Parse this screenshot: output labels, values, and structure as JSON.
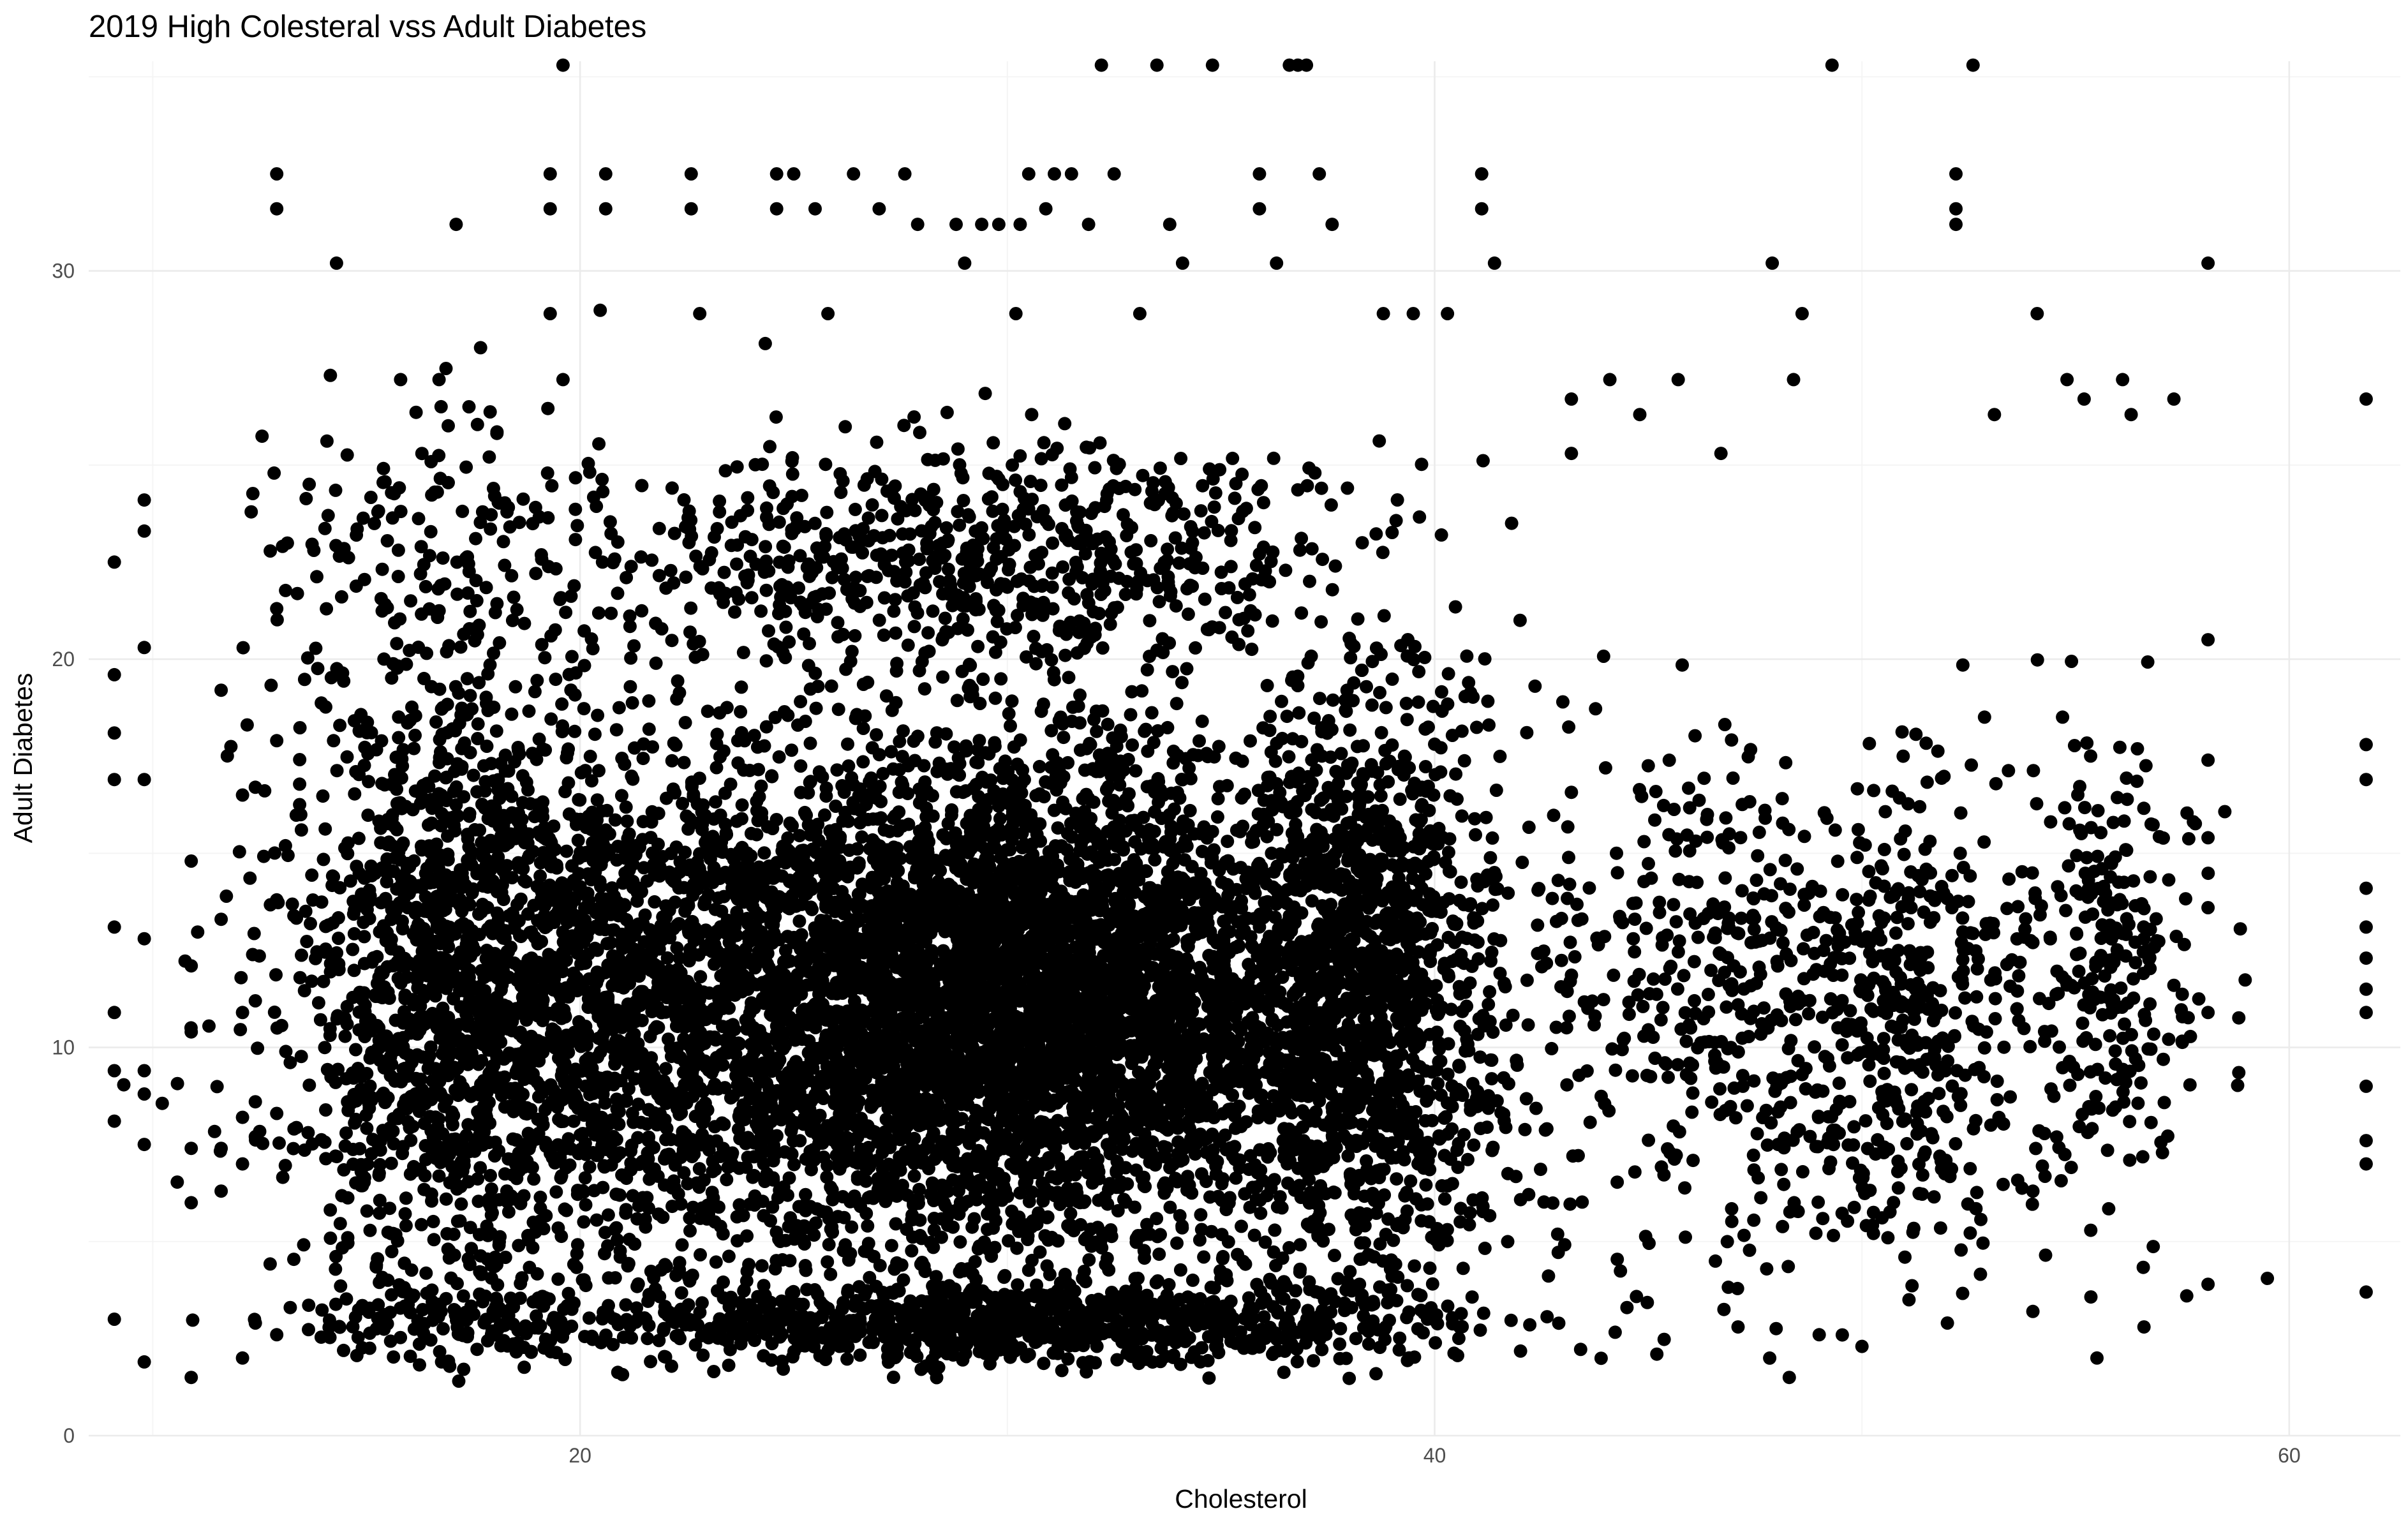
{
  "chart_data": {
    "type": "scatter",
    "title": "2019 High Colesteral vss Adult Diabetes",
    "xlabel": "Cholesterol",
    "ylabel": "Adult Diabetes",
    "xlim": [
      8.5,
      62.6
    ],
    "ylim": [
      0,
      35.4
    ],
    "x_ticks": [
      20,
      40,
      60
    ],
    "x_tick_labels": [
      "20",
      "40",
      "60"
    ],
    "y_ticks": [
      0,
      10,
      20,
      30
    ],
    "y_tick_labels": [
      "0",
      "10",
      "20",
      "30"
    ],
    "grid": true,
    "legend": "none",
    "point_color": "#000000",
    "series": [
      {
        "values": [
          [
            9.1,
            3.0
          ],
          [
            9.1,
            8.1
          ],
          [
            9.1,
            9.4
          ],
          [
            9.1,
            10.9
          ],
          [
            9.1,
            13.1
          ],
          [
            9.1,
            16.9
          ],
          [
            9.1,
            18.1
          ],
          [
            9.1,
            19.6
          ],
          [
            9.1,
            22.5
          ],
          [
            9.8,
            1.9
          ],
          [
            9.8,
            7.5
          ],
          [
            9.8,
            8.8
          ],
          [
            9.8,
            9.4
          ],
          [
            9.8,
            12.8
          ],
          [
            9.8,
            16.9
          ],
          [
            9.8,
            20.3
          ],
          [
            9.8,
            23.3
          ],
          [
            9.8,
            24.1
          ],
          [
            10.9,
            1.5
          ],
          [
            10.9,
            6.0
          ],
          [
            10.9,
            7.4
          ],
          [
            10.9,
            10.4
          ],
          [
            10.9,
            12.1
          ],
          [
            10.9,
            14.8
          ],
          [
            11.6,
            6.3
          ],
          [
            11.6,
            7.4
          ],
          [
            11.6,
            13.3
          ],
          [
            11.6,
            19.2
          ],
          [
            12.1,
            2.0
          ],
          [
            12.1,
            7.0
          ],
          [
            12.1,
            8.2
          ],
          [
            12.1,
            10.9
          ],
          [
            12.1,
            16.5
          ],
          [
            12.4,
            2.9
          ],
          [
            12.4,
            7.7
          ],
          [
            12.4,
            8.6
          ],
          [
            12.4,
            11.2
          ],
          [
            12.4,
            16.7
          ],
          [
            12.9,
            2.6
          ],
          [
            12.9,
            8.3
          ],
          [
            12.9,
            13.8
          ],
          [
            12.9,
            17.9
          ],
          [
            12.9,
            21.3
          ],
          [
            12.9,
            31.6
          ],
          [
            12.9,
            32.5
          ],
          [
            14.3,
            30.2
          ],
          [
            15.8,
            27.2
          ],
          [
            16.7,
            27.2
          ],
          [
            17.1,
            31.2
          ],
          [
            17.4,
            26.5
          ],
          [
            19.3,
            28.9
          ],
          [
            19.3,
            31.6
          ],
          [
            19.3,
            32.5
          ],
          [
            19.6,
            35.3
          ],
          [
            19.6,
            27.2
          ],
          [
            20.6,
            31.6
          ],
          [
            20.6,
            32.5
          ],
          [
            22.6,
            31.6
          ],
          [
            22.6,
            32.5
          ],
          [
            22.8,
            28.9
          ],
          [
            24.6,
            31.6
          ],
          [
            24.6,
            32.5
          ],
          [
            25.0,
            32.5
          ],
          [
            25.5,
            31.6
          ],
          [
            25.8,
            28.9
          ],
          [
            26.4,
            32.5
          ],
          [
            27.0,
            31.6
          ],
          [
            27.6,
            32.5
          ],
          [
            27.9,
            31.2
          ],
          [
            28.8,
            31.2
          ],
          [
            29.0,
            30.2
          ],
          [
            29.4,
            31.2
          ],
          [
            29.8,
            31.2
          ],
          [
            30.3,
            31.2
          ],
          [
            30.2,
            28.9
          ],
          [
            30.5,
            32.5
          ],
          [
            30.9,
            31.6
          ],
          [
            31.1,
            32.5
          ],
          [
            31.5,
            32.5
          ],
          [
            31.9,
            31.2
          ],
          [
            32.2,
            35.3
          ],
          [
            32.5,
            32.5
          ],
          [
            33.1,
            28.9
          ],
          [
            33.5,
            35.3
          ],
          [
            33.8,
            31.2
          ],
          [
            34.1,
            30.2
          ],
          [
            34.8,
            35.3
          ],
          [
            35.9,
            31.6
          ],
          [
            35.9,
            32.5
          ],
          [
            36.3,
            30.2
          ],
          [
            36.6,
            35.3
          ],
          [
            36.8,
            35.3
          ],
          [
            37.0,
            35.3
          ],
          [
            37.3,
            32.5
          ],
          [
            37.6,
            31.2
          ],
          [
            38.8,
            28.9
          ],
          [
            39.5,
            28.9
          ],
          [
            40.3,
            28.9
          ],
          [
            41.1,
            31.6
          ],
          [
            41.1,
            32.5
          ],
          [
            41.4,
            30.2
          ],
          [
            47.9,
            30.2
          ],
          [
            48.6,
            28.9
          ],
          [
            49.3,
            35.3
          ],
          [
            52.2,
            31.2
          ],
          [
            52.2,
            31.6
          ],
          [
            52.2,
            32.5
          ],
          [
            52.6,
            35.3
          ],
          [
            54.1,
            28.9
          ],
          [
            58.1,
            30.2
          ],
          [
            43.2,
            26.7
          ],
          [
            43.2,
            25.3
          ],
          [
            44.1,
            27.2
          ],
          [
            44.8,
            26.3
          ],
          [
            45.7,
            27.2
          ],
          [
            46.7,
            25.3
          ],
          [
            48.4,
            27.2
          ],
          [
            53.1,
            26.3
          ],
          [
            54.8,
            27.2
          ],
          [
            55.2,
            26.7
          ],
          [
            56.1,
            27.2
          ],
          [
            56.3,
            26.3
          ],
          [
            57.3,
            26.7
          ],
          [
            61.8,
            26.7
          ],
          [
            61.8,
            17.8
          ],
          [
            61.8,
            16.9
          ],
          [
            61.8,
            14.1
          ],
          [
            61.8,
            13.1
          ],
          [
            61.8,
            12.3
          ],
          [
            61.8,
            11.5
          ],
          [
            61.8,
            10.9
          ],
          [
            61.8,
            9.0
          ],
          [
            61.8,
            7.6
          ],
          [
            61.8,
            7.0
          ],
          [
            61.8,
            3.7
          ],
          [
            58.1,
            20.5
          ],
          [
            58.1,
            17.4
          ],
          [
            58.1,
            15.4
          ],
          [
            58.1,
            13.6
          ],
          [
            58.1,
            10.9
          ],
          [
            58.1,
            3.9
          ],
          [
            41.8,
            23.5
          ],
          [
            42.0,
            21.0
          ],
          [
            43.0,
            18.9
          ],
          [
            44.0,
            17.2
          ],
          [
            44.9,
            15.3
          ],
          [
            46.1,
            13.2
          ],
          [
            47.0,
            12.1
          ],
          [
            47.8,
            10.5
          ],
          [
            48.6,
            9.3
          ],
          [
            49.4,
            8.4
          ],
          [
            50.1,
            9.9
          ],
          [
            50.9,
            11.8
          ],
          [
            51.6,
            13.9
          ],
          [
            52.3,
            15.0
          ],
          [
            53.0,
            13.2
          ],
          [
            54.0,
            12.7
          ],
          [
            54.9,
            11.6
          ],
          [
            55.8,
            10.3
          ],
          [
            56.6,
            12.8
          ],
          [
            57.3,
            11.6
          ],
          [
            44.5,
            3.3
          ],
          [
            45.2,
            2.1
          ],
          [
            47.1,
            2.8
          ],
          [
            48.3,
            1.5
          ],
          [
            49.0,
            2.6
          ],
          [
            50.0,
            2.3
          ],
          [
            51.1,
            3.5
          ],
          [
            52.0,
            2.9
          ],
          [
            54.0,
            3.2
          ],
          [
            55.5,
            2.0
          ],
          [
            56.6,
            2.8
          ],
          [
            57.6,
            3.6
          ]
        ]
      }
    ]
  }
}
